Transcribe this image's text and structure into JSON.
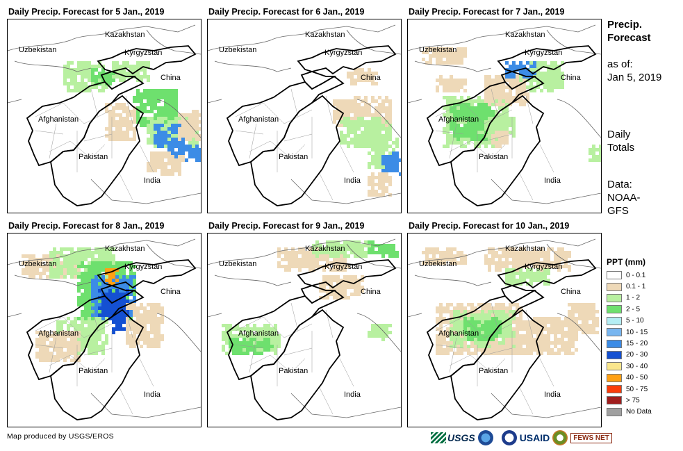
{
  "panels": [
    {
      "title": "Daily Precip. Forecast for 5 Jan., 2019",
      "variant": "d5"
    },
    {
      "title": "Daily Precip. Forecast for 6 Jan., 2019",
      "variant": "d6"
    },
    {
      "title": "Daily Precip. Forecast for 7 Jan., 2019",
      "variant": "d7"
    },
    {
      "title": "Daily Precip. Forecast for 8 Jan., 2019",
      "variant": "d8"
    },
    {
      "title": "Daily Precip. Forecast for 9 Jan., 2019",
      "variant": "d9"
    },
    {
      "title": "Daily Precip. Forecast for 10 Jan., 2019",
      "variant": "d10"
    }
  ],
  "map_labels": {
    "kazakhstan": "Kazakhstan",
    "uzbekistan": "Uzbekistan",
    "kyrgyzstan": "Kyrgyzstan",
    "china": "China",
    "afghanistan": "Afghanistan",
    "pakistan": "Pakistan",
    "india": "India"
  },
  "side": {
    "title_line1": "Precip.",
    "title_line2": "Forecast",
    "asof_label": "as of:",
    "asof_date": "Jan 5, 2019",
    "daily_line1": "Daily",
    "daily_line2": "Totals",
    "data_line1": "Data:",
    "data_line2": "NOAA-",
    "data_line3": "GFS"
  },
  "legend": {
    "title": "PPT (mm)",
    "items": [
      {
        "label": "0 - 0.1",
        "color": "#ffffff"
      },
      {
        "label": "0.1 - 1",
        "color": "#eed9b8"
      },
      {
        "label": "1 - 2",
        "color": "#b8f0a0"
      },
      {
        "label": "2 - 5",
        "color": "#6ee06e"
      },
      {
        "label": "5 - 10",
        "color": "#b4eef4"
      },
      {
        "label": "10 - 15",
        "color": "#78b6f0"
      },
      {
        "label": "15 - 20",
        "color": "#3c8ce6"
      },
      {
        "label": "20 - 30",
        "color": "#1450d2"
      },
      {
        "label": "30 - 40",
        "color": "#fae68c"
      },
      {
        "label": "40 - 50",
        "color": "#ffa014"
      },
      {
        "label": "50 - 75",
        "color": "#fa3c0a"
      },
      {
        "label": "> 75",
        "color": "#a01e1e"
      },
      {
        "label": "No Data",
        "color": "#a0a0a0"
      }
    ]
  },
  "credit": "Map produced by USGS/EROS",
  "logos": {
    "usgs": "USGS",
    "usaid": "USAID",
    "fews": "FEWS NET"
  }
}
